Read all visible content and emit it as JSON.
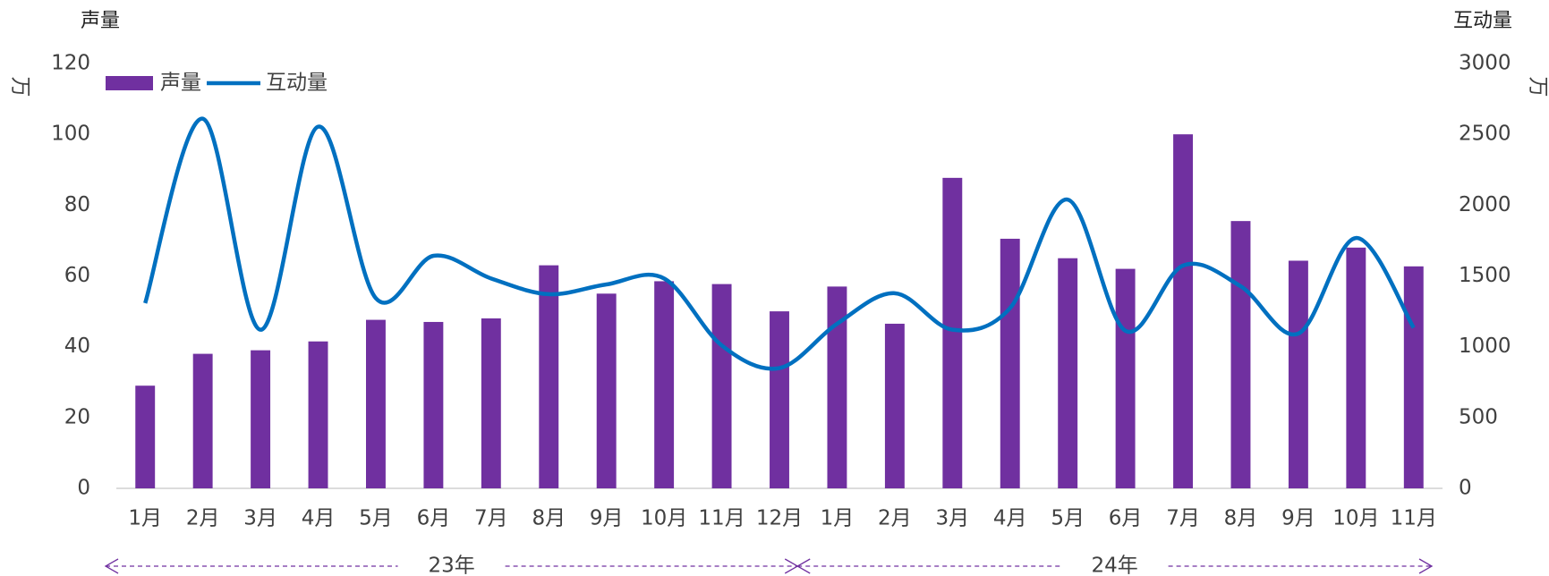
{
  "chart_data": {
    "type": "bar_line",
    "y_title": "声量",
    "y2_title": "互动量",
    "y_unit": "万",
    "y2_unit": "万",
    "categories": [
      "1月",
      "2月",
      "3月",
      "4月",
      "5月",
      "6月",
      "7月",
      "8月",
      "9月",
      "10月",
      "11月",
      "12月",
      "1月",
      "2月",
      "3月",
      "4月",
      "5月",
      "6月",
      "7月",
      "8月",
      "9月",
      "10月",
      "11月"
    ],
    "groups": [
      "23年",
      "24年"
    ],
    "series": [
      {
        "name": "声量",
        "type": "bar",
        "color": "#7030a0",
        "values": [
          29,
          38,
          39,
          41.5,
          47.6,
          47,
          48,
          63,
          55,
          58.5,
          57.7,
          50,
          57,
          46.5,
          87.7,
          70.5,
          65,
          62,
          100,
          75.5,
          64.3,
          68,
          62.7
        ]
      },
      {
        "name": "互动量",
        "type": "line",
        "axis": "y2",
        "color": "#0070c0",
        "values": [
          1308,
          2610,
          1120,
          2554,
          1343,
          1642,
          1482,
          1371,
          1440,
          1482,
          1009,
          849,
          1162,
          1378,
          1120,
          1273,
          2039,
          1113,
          1573,
          1427,
          1093,
          1768,
          1134
        ]
      }
    ],
    "ylim": [
      0,
      120
    ],
    "yticks": [
      0,
      20,
      40,
      60,
      80,
      100,
      120
    ],
    "y2lim": [
      0,
      3000
    ],
    "y2ticks": [
      0,
      500,
      1000,
      1500,
      2000,
      2500,
      3000
    ],
    "legend": "top-left"
  }
}
